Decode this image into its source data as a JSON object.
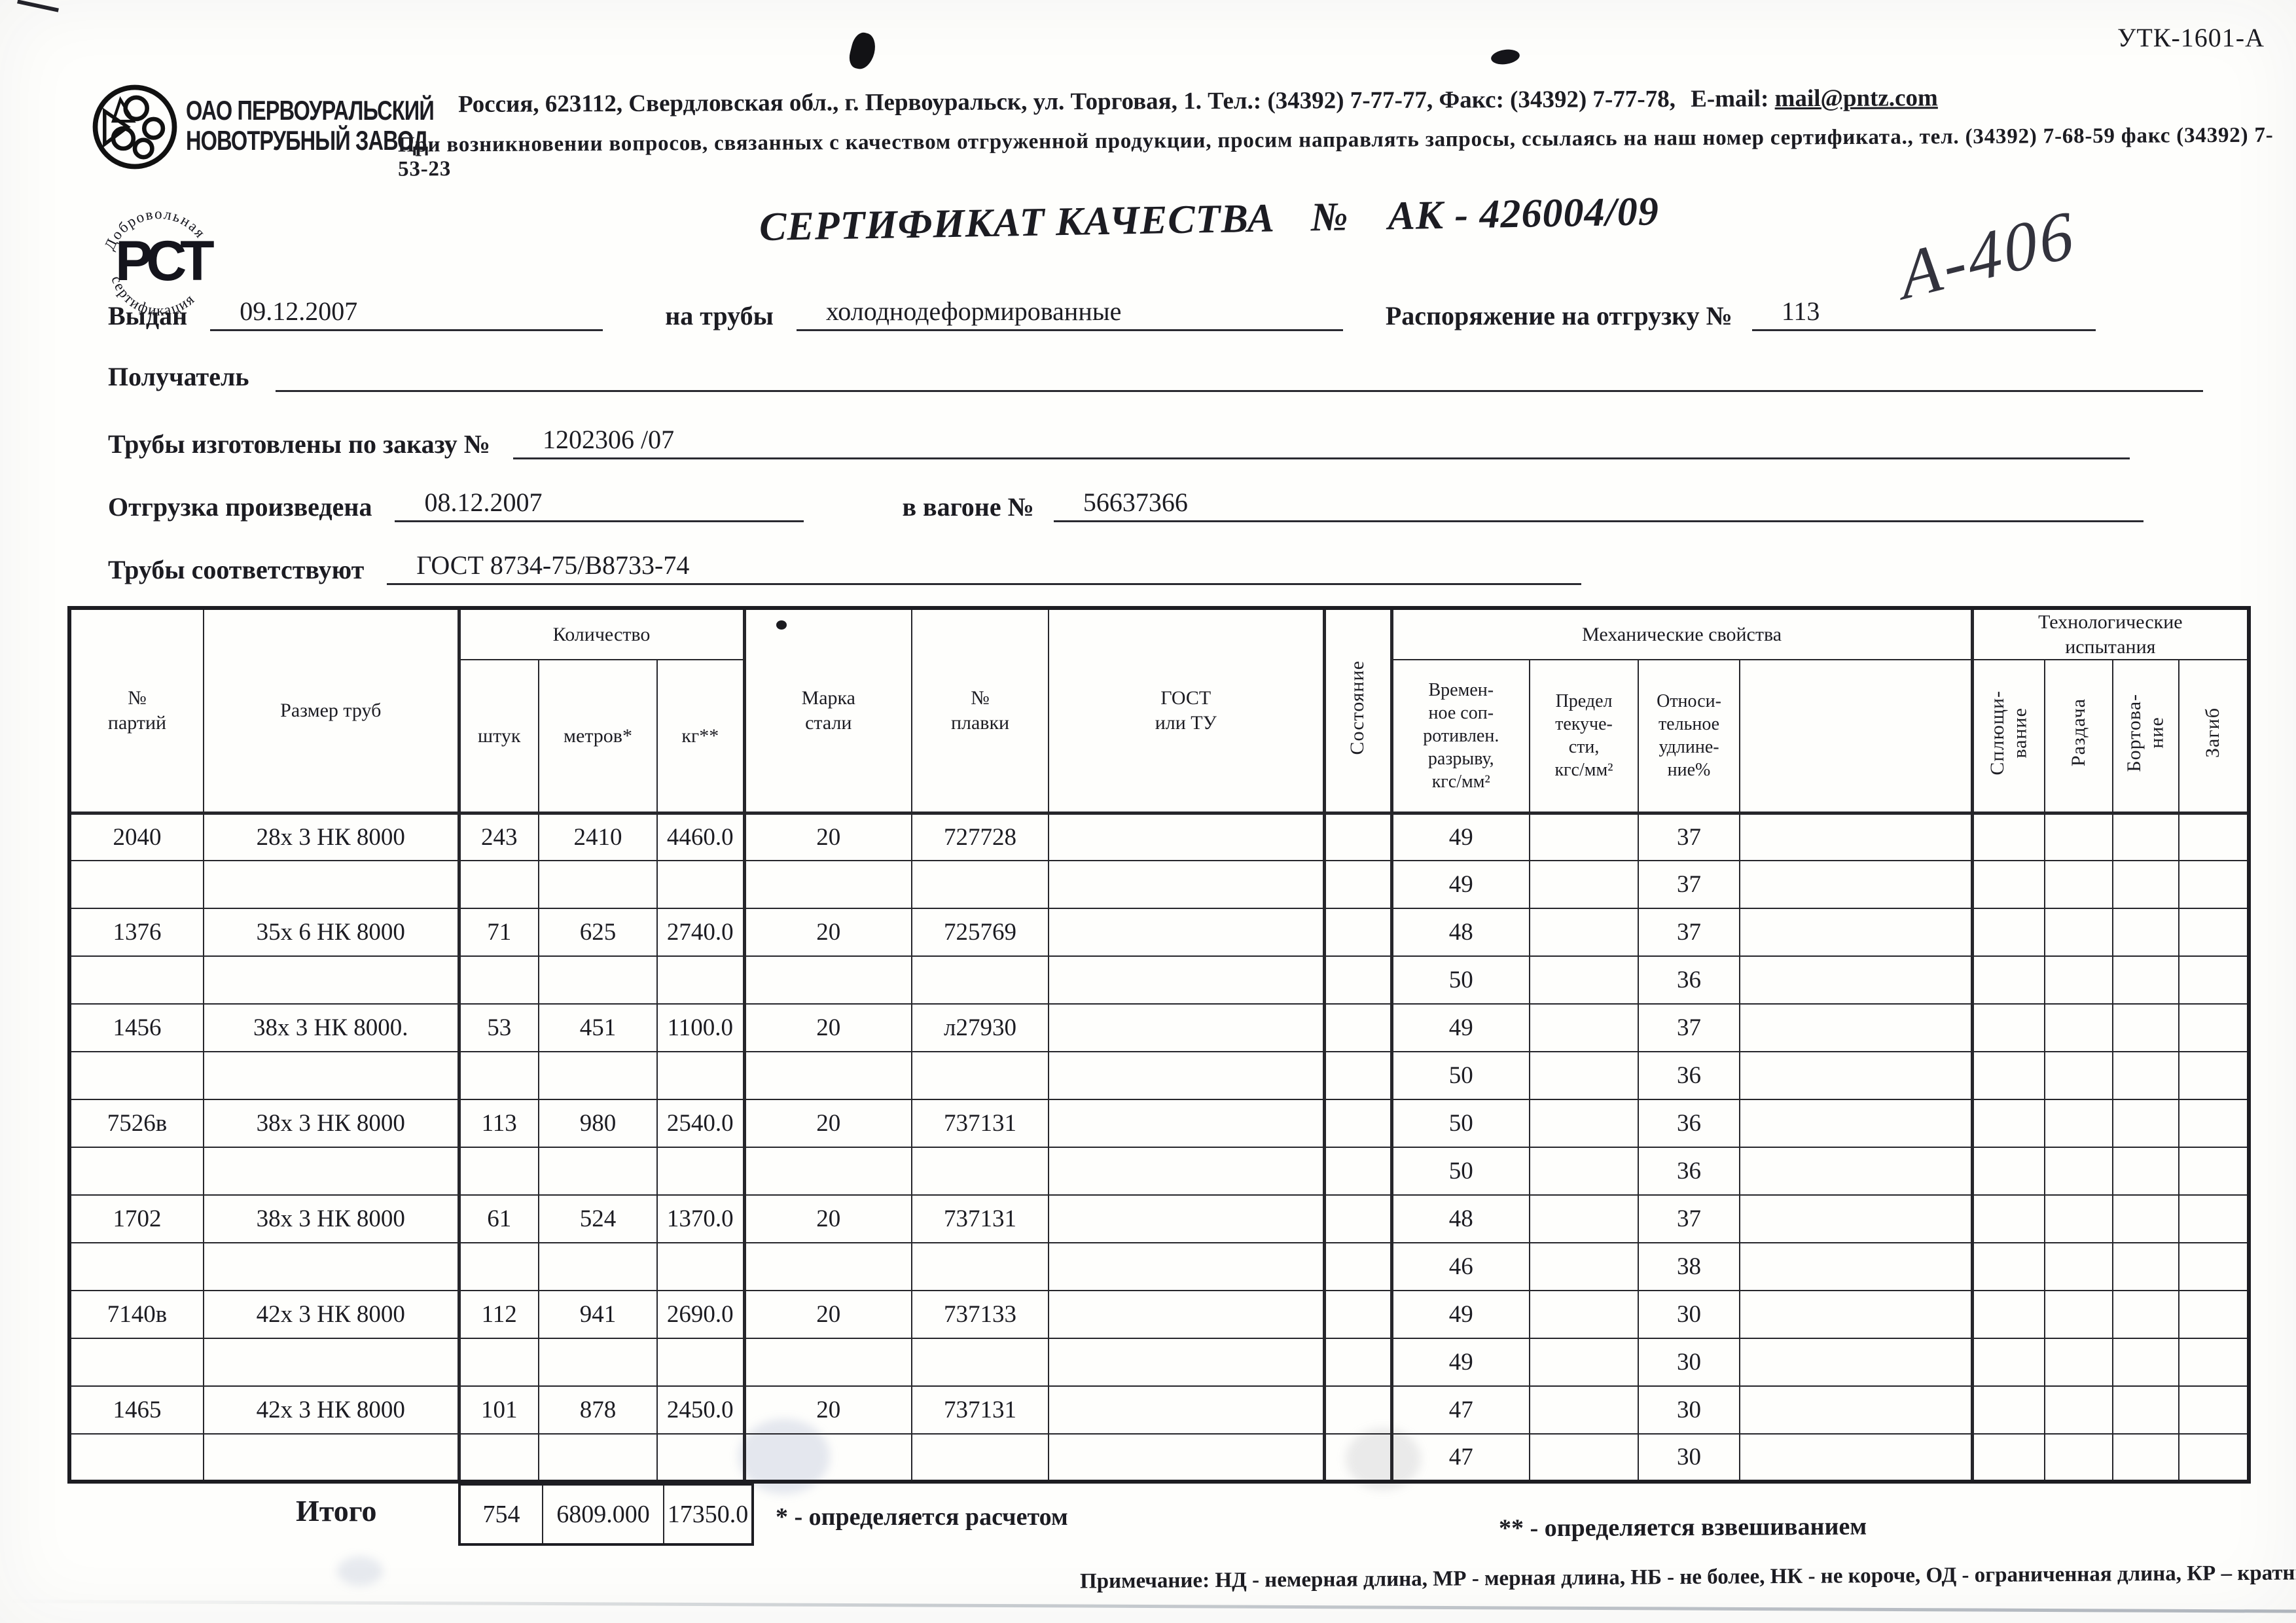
{
  "meta": {
    "form_code": "УТК-1601-А",
    "handwritten_note": "А-406"
  },
  "company": {
    "name": "ОАО ПЕРВОУРАЛЬСКИЙ\nНОВОТРУБНЫЙ ЗАВОД",
    "address_text": "Россия, 623112, Свердловская обл., г. Первоуральск, ул. Торговая, 1. Тел.: (34392) 7-77-77, Факс: (34392) 7-77-78,",
    "email_label": "E-mail:",
    "email": "mail@pntz.com",
    "notice_line": "При возникновении вопросов, связанных с качеством отгруженной продукции, просим направлять запросы, ссылаясь на наш номер сертификата., тел. (34392) 7-68-59 факс (34392) 7-53-23",
    "stamp_top": "Добровольная",
    "stamp_bottom": "сертификация",
    "stamp_center": "РСТ"
  },
  "title": {
    "main": "СЕРТИФИКАТ КАЧЕСТВА",
    "number_sign": "№",
    "number": "АК - 426004/09"
  },
  "fields": {
    "issued_label": "Выдан",
    "issued_value": "09.12.2007",
    "pipes_label": "на трубы",
    "pipes_value": "холоднодеформированные",
    "ship_order_label": "Распоряжение на отгрузку №",
    "ship_order_value": "113",
    "receiver_label": "Получатель",
    "receiver_value": "",
    "made_by_order_label": "Трубы изготовлены по заказу №",
    "made_by_order_value": "1202306  /07",
    "shipped_label": "Отгрузка произведена",
    "shipped_value": "08.12.2007",
    "wagon_label": "в вагоне №",
    "wagon_value": "56637366",
    "conform_label": "Трубы соответствуют",
    "conform_value": "ГОСТ 8734-75/В8733-74"
  },
  "table": {
    "headers": {
      "batch": "№\nпартий",
      "size": "Размер труб",
      "qty_group": "Количество",
      "qty_pieces": "штук",
      "qty_meters": "метров*",
      "qty_kg": "кг**",
      "steel": "Марка\nстали",
      "melt": "№\nплавки",
      "gost": "ГОСТ\nили ТУ",
      "state": "Состояние",
      "mech_group": "Механические свойства",
      "mech_tensile": "Времен-\nное соп-\nротивлен.\nразрыву,\nкгс/мм²",
      "mech_yield": "Предел\nтекуче-\nсти,\nкгс/мм²",
      "mech_elong": "Относи-\nтельное\nудлине-\nние%",
      "mech_extra": "",
      "tech_group": "Технологические\nиспытания",
      "tech_flatten": "Сплющи-\nвание",
      "tech_expand": "Раздача",
      "tech_flange": "Бортова-\nние",
      "tech_bend": "Загиб"
    },
    "rows": [
      {
        "batch": "2040",
        "size": "28х 3 НК 8000",
        "pcs": "243",
        "m": "2410",
        "kg": "4460.0",
        "steel": "20",
        "melt": "727728",
        "tensile": "49",
        "elong": "37"
      },
      {
        "tensile": "49",
        "elong": "37"
      },
      {
        "batch": "1376",
        "size": "35х 6 НК 8000",
        "pcs": "71",
        "m": "625",
        "kg": "2740.0",
        "steel": "20",
        "melt": "725769",
        "tensile": "48",
        "elong": "37"
      },
      {
        "tensile": "50",
        "elong": "36"
      },
      {
        "batch": "1456",
        "size": "38х 3 НК 8000.",
        "pcs": "53",
        "m": "451",
        "kg": "1100.0",
        "steel": "20",
        "melt": "л27930",
        "tensile": "49",
        "elong": "37"
      },
      {
        "tensile": "50",
        "elong": "36"
      },
      {
        "batch": "7526в",
        "size": "38х 3 НК 8000",
        "pcs": "113",
        "m": "980",
        "kg": "2540.0",
        "steel": "20",
        "melt": "737131",
        "tensile": "50",
        "elong": "36"
      },
      {
        "tensile": "50",
        "elong": "36"
      },
      {
        "batch": "1702",
        "size": "38х 3 НК 8000",
        "pcs": "61",
        "m": "524",
        "kg": "1370.0",
        "steel": "20",
        "melt": "737131",
        "tensile": "48",
        "elong": "37"
      },
      {
        "tensile": "46",
        "elong": "38"
      },
      {
        "batch": "7140в",
        "size": "42х 3 НК 8000",
        "pcs": "112",
        "m": "941",
        "kg": "2690.0",
        "steel": "20",
        "melt": "737133",
        "tensile": "49",
        "elong": "30"
      },
      {
        "tensile": "49",
        "elong": "30"
      },
      {
        "batch": "1465",
        "size": "42х 3 НК 8000",
        "pcs": "101",
        "m": "878",
        "kg": "2450.0",
        "steel": "20",
        "melt": "737131",
        "tensile": "47",
        "elong": "30"
      },
      {
        "tensile": "47",
        "elong": "30"
      }
    ],
    "totals": {
      "label": "Итого",
      "pcs": "754",
      "m": "6809.000",
      "kg": "17350.0"
    }
  },
  "footnotes": {
    "star": "* - определяется расчетом",
    "double_star": "** - определяется взвешиванием",
    "note": "Примечание: НД - немерная длина, МР - мерная длина, НБ - не более, НК - не короче, ОД - ограниченная длина, КР – кратные"
  }
}
